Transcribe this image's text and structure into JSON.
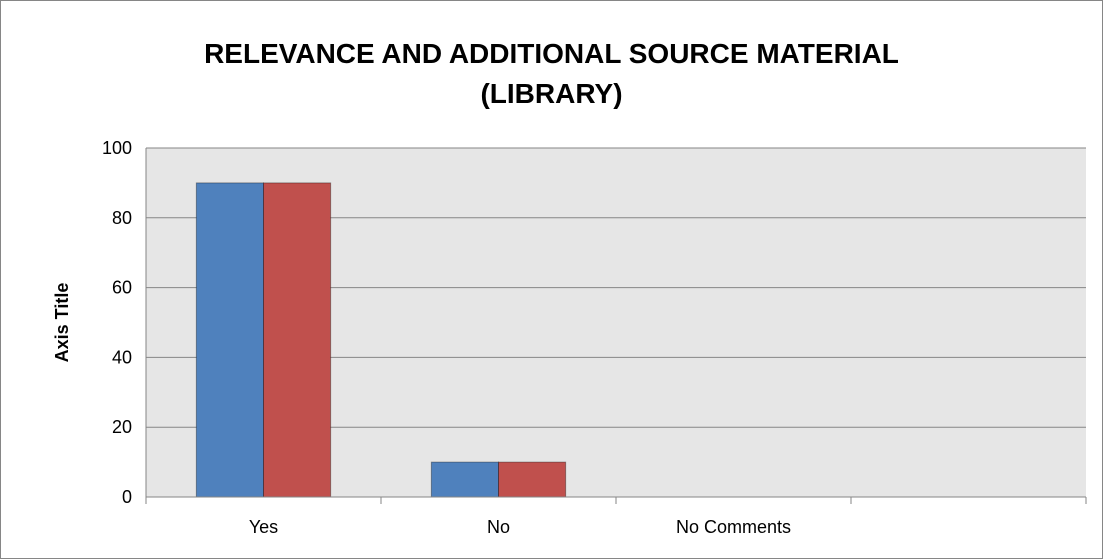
{
  "chart_data": {
    "type": "bar",
    "title": "RELEVANCE AND ADDITIONAL SOURCE MATERIAL (LIBRARY)",
    "title_lines": [
      "RELEVANCE AND ADDITIONAL SOURCE MATERIAL",
      "(LIBRARY)"
    ],
    "xlabel": "",
    "ylabel": "Axis Title",
    "categories": [
      "Yes",
      "No",
      "No Comments",
      ""
    ],
    "series": [
      {
        "values": [
          90,
          10,
          0,
          0
        ],
        "color": "#4F81BD"
      },
      {
        "values": [
          90,
          10,
          0,
          0
        ],
        "color": "#C0504D"
      }
    ],
    "ylim": [
      0,
      100
    ],
    "yticks": [
      0,
      20,
      40,
      60,
      80,
      100
    ],
    "grid": true,
    "legend": "none",
    "plot_background": "#E6E6E6",
    "gridline_color": "#868686"
  }
}
